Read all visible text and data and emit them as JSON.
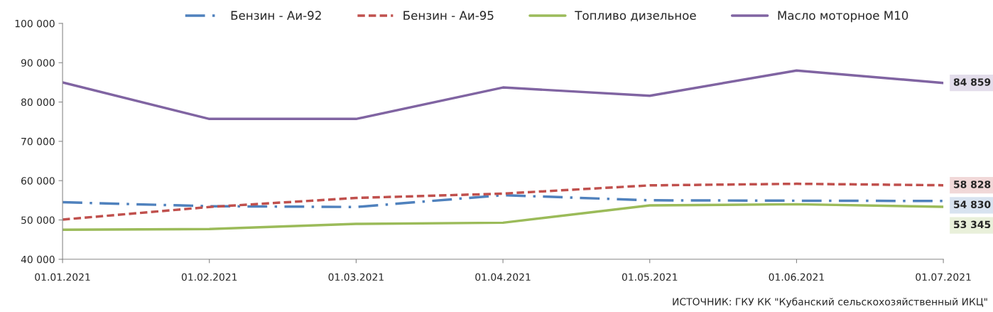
{
  "chart_data": {
    "type": "line",
    "categories": [
      "01.01.2021",
      "01.02.2021",
      "01.03.2021",
      "01.04.2021",
      "01.05.2021",
      "01.06.2021",
      "01.07.2021"
    ],
    "series": [
      {
        "name": "Бензин - Аи-92",
        "color": "#4f81bd",
        "line_style": "dashdot",
        "values": [
          54500,
          53500,
          53300,
          56300,
          55000,
          54900,
          54830
        ],
        "value_labels": [
          null,
          null,
          null,
          null,
          null,
          null,
          "54 830"
        ]
      },
      {
        "name": "Бензин - Аи-95",
        "color": "#c0504d",
        "line_style": "dashed",
        "values": [
          50100,
          53300,
          55600,
          56700,
          58800,
          59200,
          58828
        ],
        "value_labels": [
          null,
          null,
          null,
          null,
          null,
          null,
          "58 828"
        ]
      },
      {
        "name": "Топливо дизельное",
        "color": "#9bbb59",
        "line_style": "solid",
        "values": [
          47500,
          47700,
          49000,
          49300,
          53700,
          54000,
          53345
        ],
        "value_labels": [
          null,
          null,
          null,
          null,
          null,
          null,
          "53 345"
        ]
      },
      {
        "name": "Масло моторное М10",
        "color": "#8064a2",
        "line_style": "solid",
        "values": [
          85000,
          75700,
          75700,
          83700,
          81600,
          88000,
          84859
        ],
        "value_labels": [
          null,
          null,
          null,
          null,
          null,
          null,
          "84 859"
        ]
      }
    ],
    "ylim": [
      40000,
      100000
    ],
    "yticks": [
      {
        "value": 40000,
        "label": "40 000"
      },
      {
        "value": 50000,
        "label": "50 000"
      },
      {
        "value": 60000,
        "label": "60 000"
      },
      {
        "value": 70000,
        "label": "70 000"
      },
      {
        "value": 80000,
        "label": "80 000"
      },
      {
        "value": 90000,
        "label": "90 000"
      },
      {
        "value": 100000,
        "label": "100 000"
      }
    ],
    "grid": false,
    "legend": "top",
    "marker": "none",
    "annotations": [
      "ИСТОЧНИК: ГКУ КК \"Кубанский сельскохозяйственный ИКЦ\""
    ]
  }
}
